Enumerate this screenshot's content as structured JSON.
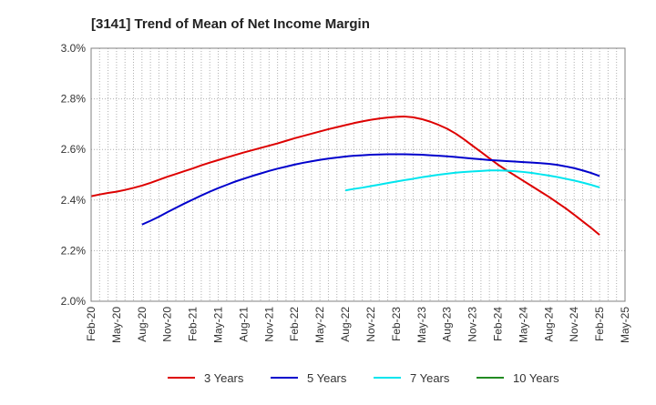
{
  "chart_data": {
    "type": "line",
    "title": "[3141]  Trend of Mean of Net Income Margin",
    "xlabel": "",
    "ylabel": "",
    "ylim": [
      2.0,
      3.0
    ],
    "y_ticks": [
      "2.0%",
      "2.2%",
      "2.4%",
      "2.6%",
      "2.8%",
      "3.0%"
    ],
    "y_tick_values": [
      2.0,
      2.2,
      2.4,
      2.6,
      2.8,
      3.0
    ],
    "x_ticks": [
      "Feb-20",
      "May-20",
      "Aug-20",
      "Nov-20",
      "Feb-21",
      "May-21",
      "Aug-21",
      "Nov-21",
      "Feb-22",
      "May-22",
      "Aug-22",
      "Nov-22",
      "Feb-23",
      "May-23",
      "Aug-23",
      "Nov-23",
      "Feb-24",
      "May-24",
      "Aug-24",
      "Nov-24",
      "Feb-25",
      "May-25"
    ],
    "grid": true,
    "legend_position": "bottom",
    "series": [
      {
        "name": "3 Years",
        "color": "#dd0000",
        "x": [
          "Feb-20",
          "Mar-20",
          "Apr-20",
          "May-20",
          "Jun-20",
          "Jul-20",
          "Aug-20",
          "Sep-20",
          "Oct-20",
          "Nov-20",
          "Dec-20",
          "Jan-21",
          "Feb-21",
          "Mar-21",
          "Apr-21",
          "May-21",
          "Jun-21",
          "Jul-21",
          "Aug-21",
          "Sep-21",
          "Oct-21",
          "Nov-21",
          "Dec-21",
          "Jan-22",
          "Feb-22",
          "Mar-22",
          "Apr-22",
          "May-22",
          "Jun-22",
          "Jul-22",
          "Aug-22",
          "Sep-22",
          "Oct-22",
          "Nov-22",
          "Dec-22",
          "Jan-23",
          "Feb-23",
          "Mar-23",
          "Apr-23",
          "May-23",
          "Jun-23",
          "Jul-23",
          "Aug-23",
          "Sep-23",
          "Oct-23",
          "Nov-23",
          "Dec-23",
          "Jan-24",
          "Feb-24",
          "Mar-24",
          "Apr-24",
          "May-24",
          "Jun-24",
          "Jul-24",
          "Aug-24",
          "Sep-24",
          "Oct-24",
          "Nov-24",
          "Dec-24",
          "Jan-25",
          "Feb-25"
        ],
        "values": [
          2.415,
          2.422,
          2.428,
          2.433,
          2.44,
          2.448,
          2.457,
          2.468,
          2.48,
          2.492,
          2.503,
          2.514,
          2.525,
          2.537,
          2.548,
          2.558,
          2.568,
          2.578,
          2.588,
          2.597,
          2.606,
          2.615,
          2.624,
          2.634,
          2.644,
          2.653,
          2.662,
          2.671,
          2.68,
          2.688,
          2.696,
          2.704,
          2.711,
          2.717,
          2.722,
          2.726,
          2.729,
          2.73,
          2.727,
          2.72,
          2.71,
          2.697,
          2.682,
          2.663,
          2.64,
          2.615,
          2.59,
          2.565,
          2.54,
          2.518,
          2.497,
          2.476,
          2.455,
          2.434,
          2.413,
          2.39,
          2.367,
          2.342,
          2.316,
          2.29,
          2.262
        ]
      },
      {
        "name": "5 Years",
        "color": "#0000cc",
        "x": [
          "Aug-20",
          "Sep-20",
          "Oct-20",
          "Nov-20",
          "Dec-20",
          "Jan-21",
          "Feb-21",
          "Mar-21",
          "Apr-21",
          "May-21",
          "Jun-21",
          "Jul-21",
          "Aug-21",
          "Sep-21",
          "Oct-21",
          "Nov-21",
          "Dec-21",
          "Jan-22",
          "Feb-22",
          "Mar-22",
          "Apr-22",
          "May-22",
          "Jun-22",
          "Jul-22",
          "Aug-22",
          "Sep-22",
          "Oct-22",
          "Nov-22",
          "Dec-22",
          "Jan-23",
          "Feb-23",
          "Mar-23",
          "Apr-23",
          "May-23",
          "Jun-23",
          "Jul-23",
          "Aug-23",
          "Sep-23",
          "Oct-23",
          "Nov-23",
          "Dec-23",
          "Jan-24",
          "Feb-24",
          "Mar-24",
          "Apr-24",
          "May-24",
          "Jun-24",
          "Jul-24",
          "Aug-24",
          "Sep-24",
          "Oct-24",
          "Nov-24",
          "Dec-24",
          "Jan-25",
          "Feb-25"
        ],
        "values": [
          2.303,
          2.318,
          2.334,
          2.352,
          2.369,
          2.386,
          2.402,
          2.418,
          2.433,
          2.447,
          2.46,
          2.473,
          2.484,
          2.495,
          2.505,
          2.515,
          2.524,
          2.532,
          2.54,
          2.547,
          2.553,
          2.559,
          2.564,
          2.568,
          2.572,
          2.575,
          2.577,
          2.579,
          2.58,
          2.581,
          2.581,
          2.581,
          2.58,
          2.579,
          2.577,
          2.575,
          2.573,
          2.57,
          2.567,
          2.564,
          2.561,
          2.558,
          2.556,
          2.554,
          2.552,
          2.55,
          2.548,
          2.546,
          2.543,
          2.539,
          2.533,
          2.526,
          2.517,
          2.507,
          2.495
        ]
      },
      {
        "name": "7 Years",
        "color": "#00e5ee",
        "x": [
          "Aug-22",
          "Sep-22",
          "Oct-22",
          "Nov-22",
          "Dec-22",
          "Jan-23",
          "Feb-23",
          "Mar-23",
          "Apr-23",
          "May-23",
          "Jun-23",
          "Jul-23",
          "Aug-23",
          "Sep-23",
          "Oct-23",
          "Nov-23",
          "Dec-23",
          "Jan-24",
          "Feb-24",
          "Mar-24",
          "Apr-24",
          "May-24",
          "Jun-24",
          "Jul-24",
          "Aug-24",
          "Sep-24",
          "Oct-24",
          "Nov-24",
          "Dec-24",
          "Jan-25",
          "Feb-25"
        ],
        "values": [
          2.438,
          2.444,
          2.449,
          2.455,
          2.461,
          2.467,
          2.473,
          2.479,
          2.484,
          2.49,
          2.495,
          2.5,
          2.504,
          2.508,
          2.511,
          2.513,
          2.515,
          2.517,
          2.517,
          2.516,
          2.514,
          2.511,
          2.507,
          2.502,
          2.497,
          2.491,
          2.484,
          2.477,
          2.469,
          2.46,
          2.45
        ]
      },
      {
        "name": "10 Years",
        "color": "#228b22",
        "x": [],
        "values": []
      }
    ]
  }
}
